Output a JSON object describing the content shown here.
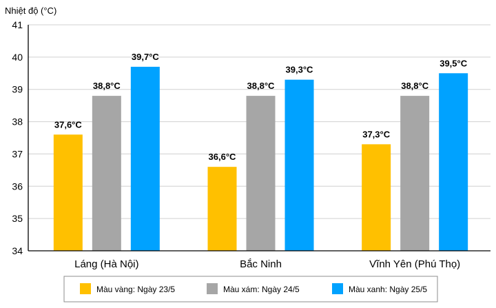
{
  "chart_data": {
    "type": "bar",
    "ylabel": "Nhiệt độ (°C)",
    "ylim": [
      34,
      41
    ],
    "yticks": [
      "34",
      "35",
      "36",
      "37",
      "38",
      "39",
      "40",
      "41"
    ],
    "grid": true,
    "categories": [
      "Láng (Hà Nội)",
      "Bắc Ninh",
      "Vĩnh Yên (Phú Thọ)"
    ],
    "series": [
      {
        "name": "Màu vàng: Ngày 23/5",
        "color": "#FFC000",
        "values": [
          37.6,
          36.6,
          37.3
        ],
        "labels": [
          "37,6°C",
          "36,6°C",
          "37,3°C"
        ]
      },
      {
        "name": "Màu xám: Ngày 24/5",
        "color": "#A6A6A6",
        "values": [
          38.8,
          38.8,
          38.8
        ],
        "labels": [
          "38,8°C",
          "38,8°C",
          "38,8°C"
        ]
      },
      {
        "name": "Màu xanh: Ngày 25/5",
        "color": "#00A2FF",
        "values": [
          39.7,
          39.3,
          39.5
        ],
        "labels": [
          "39,7°C",
          "39,3°C",
          "39,5°C"
        ]
      }
    ],
    "legend_position": "bottom"
  }
}
